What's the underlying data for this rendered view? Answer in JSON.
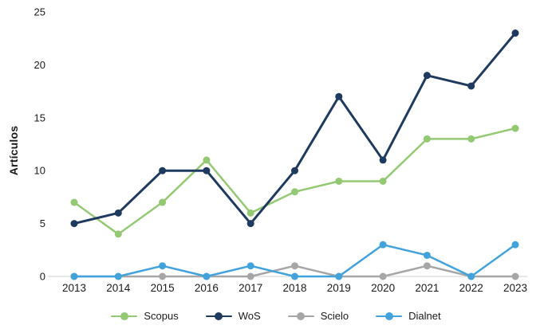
{
  "chart_data": {
    "type": "line",
    "title": "",
    "xlabel": "",
    "ylabel": "Artículos",
    "categories": [
      "2013",
      "2014",
      "2015",
      "2016",
      "2017",
      "2018",
      "2019",
      "2020",
      "2021",
      "2022",
      "2023"
    ],
    "series": [
      {
        "name": "Scopus",
        "color": "#94C973",
        "line_width": 2.5,
        "values": [
          7,
          4,
          7,
          11,
          6,
          8,
          9,
          9,
          13,
          13,
          14
        ]
      },
      {
        "name": "WoS",
        "color": "#1E3A5F",
        "line_width": 3,
        "values": [
          5,
          6,
          10,
          10,
          5,
          10,
          17,
          11,
          19,
          18,
          23
        ]
      },
      {
        "name": "Scielo",
        "color": "#A6A6A6",
        "line_width": 2.5,
        "values": [
          0,
          0,
          0,
          0,
          0,
          1,
          0,
          0,
          1,
          0,
          0
        ]
      },
      {
        "name": "Dialnet",
        "color": "#41A2DC",
        "line_width": 2.5,
        "values": [
          0,
          0,
          1,
          0,
          1,
          0,
          0,
          3,
          2,
          0,
          3
        ]
      }
    ],
    "ylim": [
      0,
      25
    ],
    "yticks": [
      0,
      5,
      10,
      15,
      20,
      25
    ],
    "grid": false,
    "legend_position": "bottom",
    "axis_line_color": "#D9D9D9",
    "text_color": "#1a1a1a"
  }
}
